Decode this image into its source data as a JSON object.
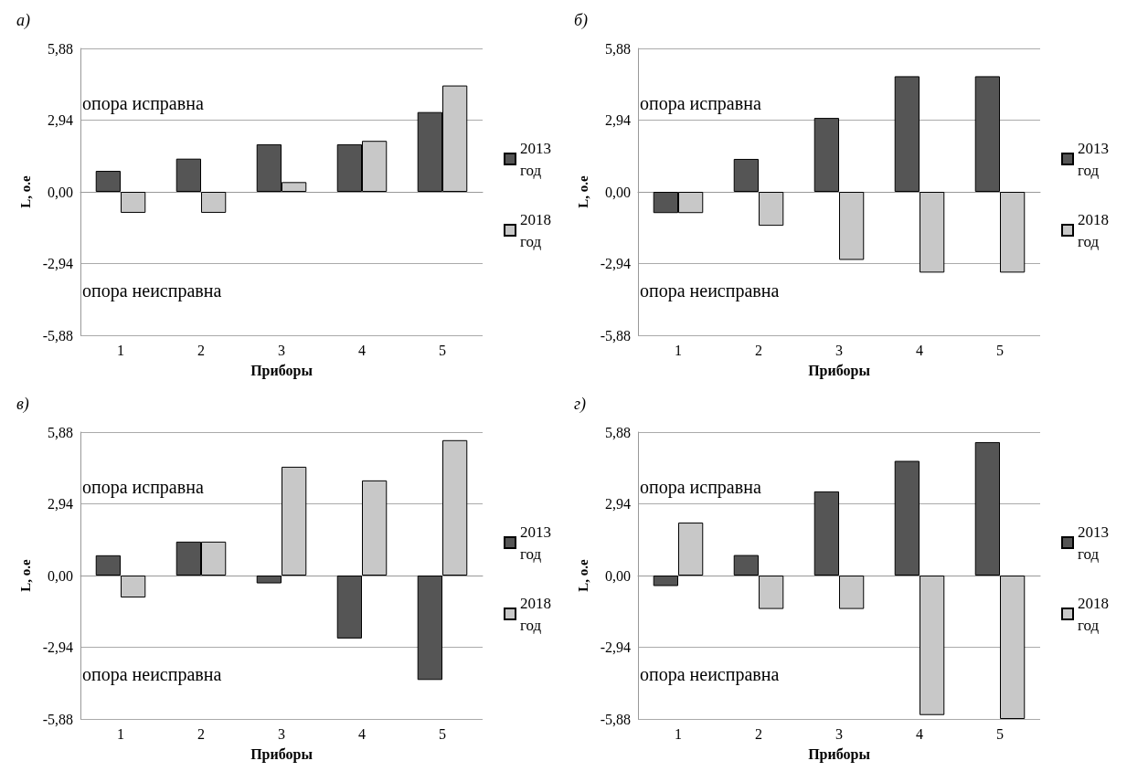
{
  "chart_data": [
    {
      "type": "bar",
      "title": "а)",
      "xlabel": "Приборы",
      "ylabel": "L, о.е",
      "categories": [
        "1",
        "2",
        "3",
        "4",
        "5"
      ],
      "series": [
        {
          "name": "2013 год",
          "color": "#555555",
          "values": [
            0.86,
            1.36,
            1.95,
            1.95,
            3.27
          ]
        },
        {
          "name": "2018 год",
          "color": "#c8c8c8",
          "values": [
            -0.86,
            -0.86,
            0.4,
            2.09,
            4.36
          ]
        }
      ],
      "ylim": [
        -5.88,
        5.88
      ],
      "yticks": [
        {
          "value": -5.88,
          "label": "-5,88"
        },
        {
          "value": -2.94,
          "label": "-2,94"
        },
        {
          "value": 0,
          "label": "0,00"
        },
        {
          "value": 2.94,
          "label": "2,94"
        },
        {
          "value": 5.88,
          "label": "5,88"
        }
      ],
      "grid": "y",
      "legend": "right",
      "annotations": [
        "опора исправна",
        "опора неисправна"
      ]
    },
    {
      "type": "bar",
      "title": "б)",
      "xlabel": "Приборы",
      "ylabel": "L, о.е",
      "categories": [
        "1",
        "2",
        "3",
        "4",
        "5"
      ],
      "series": [
        {
          "name": "2013 год",
          "color": "#555555",
          "values": [
            -0.87,
            1.35,
            3.03,
            4.74,
            4.74
          ]
        },
        {
          "name": "2018 год",
          "color": "#c8c8c8",
          "values": [
            -0.87,
            -1.39,
            -2.79,
            -3.31,
            -3.31
          ]
        }
      ],
      "ylim": [
        -5.88,
        5.88
      ],
      "yticks": [
        {
          "value": -5.88,
          "label": "-5,88"
        },
        {
          "value": -2.94,
          "label": "-2,94"
        },
        {
          "value": 0,
          "label": "0,00"
        },
        {
          "value": 2.94,
          "label": "2,94"
        },
        {
          "value": 5.88,
          "label": "5,88"
        }
      ],
      "grid": "y",
      "legend": "right",
      "annotations": [
        "опора исправна",
        "опора неисправна"
      ]
    },
    {
      "type": "bar",
      "title": "в)",
      "xlabel": "Приборы",
      "ylabel": "L, о.е",
      "categories": [
        "1",
        "2",
        "3",
        "4",
        "5"
      ],
      "series": [
        {
          "name": "2013 год",
          "color": "#555555",
          "values": [
            0.83,
            1.39,
            -0.32,
            -2.58,
            -4.28
          ]
        },
        {
          "name": "2018 год",
          "color": "#c8c8c8",
          "values": [
            -0.9,
            1.39,
            4.46,
            3.9,
            5.55
          ]
        }
      ],
      "ylim": [
        -5.88,
        5.88
      ],
      "yticks": [
        {
          "value": -5.88,
          "label": "-5,88"
        },
        {
          "value": -2.94,
          "label": "-2,94"
        },
        {
          "value": 0,
          "label": "0,00"
        },
        {
          "value": 2.94,
          "label": "2,94"
        },
        {
          "value": 5.88,
          "label": "5,88"
        }
      ],
      "grid": "y",
      "legend": "right",
      "annotations": [
        "опора исправна",
        "опора неисправна"
      ]
    },
    {
      "type": "bar",
      "title": "г)",
      "xlabel": "Приборы",
      "ylabel": "L, о.е",
      "categories": [
        "1",
        "2",
        "3",
        "4",
        "5"
      ],
      "series": [
        {
          "name": "2013 год",
          "color": "#555555",
          "values": [
            -0.43,
            0.84,
            3.45,
            4.7,
            5.47
          ]
        },
        {
          "name": "2018 год",
          "color": "#c8c8c8",
          "values": [
            2.17,
            -1.37,
            -1.37,
            -5.72,
            -5.88
          ]
        }
      ],
      "ylim": [
        -5.88,
        5.88
      ],
      "yticks": [
        {
          "value": -5.88,
          "label": "-5,88"
        },
        {
          "value": -2.94,
          "label": "-2,94"
        },
        {
          "value": 0,
          "label": "0,00"
        },
        {
          "value": 2.94,
          "label": "2,94"
        },
        {
          "value": 5.88,
          "label": "5,88"
        }
      ],
      "grid": "y",
      "legend": "right",
      "annotations": [
        "опора исправна",
        "опора неисправна"
      ]
    }
  ]
}
